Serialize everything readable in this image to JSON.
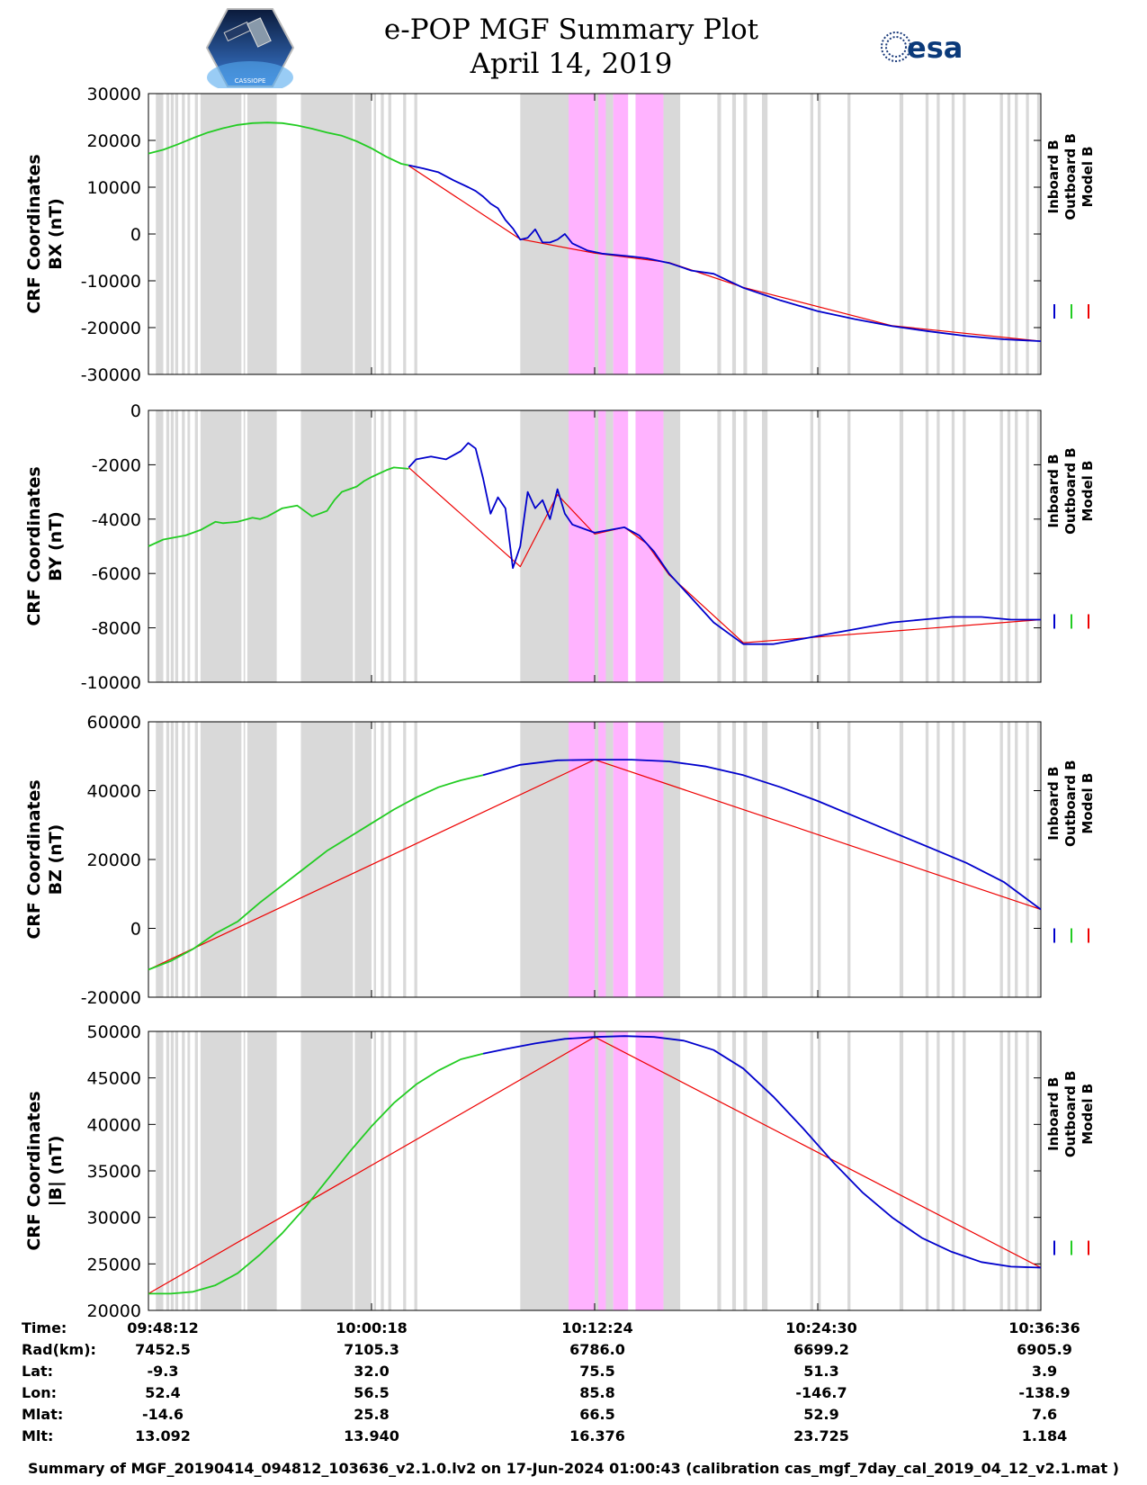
{
  "header": {
    "title": "e-POP MGF Summary Plot",
    "date": "April 14, 2019",
    "left_logo": "CASSIOPE satellite mission logo",
    "left_logo_caption": "CASSIOPE",
    "right_logo": "esa"
  },
  "colors": {
    "inboard": "#0000cc",
    "outboard": "#22cc22",
    "model": "#ee0000",
    "gray_band": "#d9d9d9",
    "pink_band": "#ffb3ff"
  },
  "chart_data": [
    {
      "type": "line",
      "ylabel_line1": "CRF Coordinates",
      "ylabel_line2": "BX (nT)",
      "ylim": [
        -30000,
        30000
      ],
      "yticks": [
        "30000",
        "20000",
        "10000",
        "0",
        "-10000",
        "-20000",
        "-30000"
      ],
      "yticks_values": [
        30000,
        20000,
        10000,
        0,
        -10000,
        -20000,
        -30000
      ],
      "legend": [
        "Inboard B",
        "Outboard B",
        "Model B"
      ],
      "series": [
        {
          "name": "Outboard B",
          "x": [
            0,
            4,
            8,
            12,
            16,
            20,
            24,
            28,
            32,
            36,
            40,
            44,
            48,
            52,
            56,
            60,
            64,
            68,
            70
          ],
          "values": [
            17200,
            18000,
            19200,
            20500,
            21700,
            22600,
            23300,
            23700,
            23800,
            23700,
            23200,
            22500,
            21700,
            21000,
            19800,
            18300,
            16500,
            15000,
            14700
          ]
        },
        {
          "name": "Inboard B",
          "x": [
            70,
            74,
            78,
            82,
            86,
            88,
            90,
            92,
            94,
            96,
            98,
            100,
            102,
            104,
            106,
            108,
            110,
            112,
            114,
            118,
            122,
            126,
            130,
            134,
            140,
            146,
            152,
            160,
            170,
            180,
            190,
            200,
            210,
            220,
            230,
            240
          ],
          "values": [
            14700,
            14000,
            13200,
            11500,
            10000,
            9200,
            8000,
            6500,
            5500,
            3000,
            1200,
            -1200,
            -800,
            1000,
            -1800,
            -1800,
            -1200,
            0,
            -2000,
            -3500,
            -4200,
            -4500,
            -4800,
            -5200,
            -6200,
            -7800,
            -8500,
            -11500,
            -14200,
            -16500,
            -18200,
            -19700,
            -20800,
            -21800,
            -22500,
            -22900
          ]
        },
        {
          "name": "Model B",
          "x": [
            70,
            100,
            120,
            140,
            160,
            200,
            240
          ],
          "values": [
            14600,
            -1100,
            -4100,
            -6100,
            -11400,
            -19600,
            -22900
          ]
        }
      ]
    },
    {
      "type": "line",
      "ylabel_line1": "CRF Coordinates",
      "ylabel_line2": "BY (nT)",
      "ylim": [
        -10000,
        0
      ],
      "yticks": [
        "0",
        "-2000",
        "-4000",
        "-6000",
        "-8000",
        "-10000"
      ],
      "yticks_values": [
        0,
        -2000,
        -4000,
        -6000,
        -8000,
        -10000
      ],
      "legend": [
        "Inboard B",
        "Outboard B",
        "Model B"
      ],
      "series": [
        {
          "name": "Outboard B",
          "x": [
            0,
            4,
            10,
            14,
            18,
            20,
            24,
            28,
            30,
            32,
            36,
            40,
            44,
            48,
            50,
            52,
            54,
            56,
            58,
            60,
            64,
            66,
            70
          ],
          "values": [
            -5000,
            -4750,
            -4600,
            -4400,
            -4100,
            -4150,
            -4100,
            -3950,
            -4000,
            -3900,
            -3600,
            -3500,
            -3900,
            -3700,
            -3300,
            -3000,
            -2900,
            -2800,
            -2600,
            -2450,
            -2200,
            -2100,
            -2150
          ]
        },
        {
          "name": "Inboard B",
          "x": [
            70,
            72,
            76,
            80,
            84,
            86,
            88,
            90,
            92,
            94,
            96,
            98,
            100,
            102,
            104,
            106,
            108,
            110,
            112,
            114,
            116,
            118,
            120,
            124,
            128,
            132,
            136,
            140,
            146,
            152,
            160,
            168,
            176,
            184,
            192,
            200,
            208,
            216,
            224,
            232,
            240
          ],
          "values": [
            -2100,
            -1800,
            -1700,
            -1800,
            -1500,
            -1200,
            -1400,
            -2500,
            -3800,
            -3200,
            -3600,
            -5800,
            -5000,
            -3000,
            -3600,
            -3300,
            -4000,
            -2900,
            -3800,
            -4200,
            -4300,
            -4400,
            -4500,
            -4400,
            -4300,
            -4600,
            -5200,
            -6000,
            -6900,
            -7800,
            -8600,
            -8600,
            -8400,
            -8200,
            -8000,
            -7800,
            -7700,
            -7600,
            -7600,
            -7700,
            -7700
          ]
        },
        {
          "name": "Model B",
          "x": [
            70,
            100,
            110,
            120,
            128,
            134,
            140,
            160,
            240
          ],
          "values": [
            -2100,
            -5750,
            -3100,
            -4550,
            -4300,
            -4900,
            -6050,
            -8550,
            -7700
          ]
        }
      ]
    },
    {
      "type": "line",
      "ylabel_line1": "CRF Coordinates",
      "ylabel_line2": "BZ (nT)",
      "ylim": [
        -20000,
        60000
      ],
      "yticks": [
        "60000",
        "40000",
        "20000",
        "0",
        "-20000"
      ],
      "yticks_values": [
        60000,
        40000,
        20000,
        0,
        -20000
      ],
      "legend": [
        "Inboard B",
        "Outboard B",
        "Model B"
      ],
      "series": [
        {
          "name": "Outboard B",
          "x": [
            0,
            6,
            12,
            18,
            24,
            30,
            36,
            42,
            48,
            54,
            60,
            66,
            72,
            78,
            84,
            90
          ],
          "values": [
            -12000,
            -9500,
            -6000,
            -1500,
            2000,
            7500,
            12500,
            17500,
            22500,
            26500,
            30500,
            34500,
            38000,
            41000,
            43000,
            44500
          ]
        },
        {
          "name": "Inboard B",
          "x": [
            90,
            100,
            110,
            120,
            130,
            140,
            150,
            160,
            170,
            180,
            190,
            200,
            210,
            220,
            230,
            240
          ],
          "values": [
            44500,
            47500,
            48800,
            49000,
            49000,
            48500,
            47000,
            44500,
            41000,
            37000,
            32500,
            28000,
            23500,
            19000,
            13500,
            5500
          ]
        },
        {
          "name": "Model B",
          "x": [
            0,
            120,
            240
          ],
          "values": [
            -12000,
            49000,
            5500
          ]
        }
      ]
    },
    {
      "type": "line",
      "ylabel_line1": "CRF Coordinates",
      "ylabel_line2": "|B| (nT)",
      "ylim": [
        20000,
        50000
      ],
      "yticks": [
        "50000",
        "45000",
        "40000",
        "35000",
        "30000",
        "25000",
        "20000"
      ],
      "yticks_values": [
        50000,
        45000,
        40000,
        35000,
        30000,
        25000,
        20000
      ],
      "legend": [
        "Inboard B",
        "Outboard B",
        "Model B"
      ],
      "series": [
        {
          "name": "Outboard B",
          "x": [
            0,
            6,
            12,
            18,
            24,
            30,
            36,
            42,
            48,
            54,
            60,
            66,
            72,
            78,
            84,
            90
          ],
          "values": [
            21800,
            21800,
            22000,
            22700,
            24000,
            26000,
            28300,
            31000,
            34000,
            37000,
            39800,
            42300,
            44300,
            45800,
            47000,
            47600
          ]
        },
        {
          "name": "Inboard B",
          "x": [
            90,
            96,
            104,
            112,
            120,
            128,
            136,
            144,
            152,
            160,
            168,
            176,
            184,
            192,
            200,
            208,
            216,
            224,
            232,
            240
          ],
          "values": [
            47600,
            48100,
            48700,
            49200,
            49400,
            49500,
            49400,
            49000,
            48000,
            46000,
            43000,
            39600,
            36000,
            32700,
            30000,
            27800,
            26300,
            25200,
            24700,
            24600
          ]
        },
        {
          "name": "Model B",
          "x": [
            0,
            120,
            240
          ],
          "values": [
            21800,
            49400,
            24600
          ]
        }
      ]
    }
  ],
  "shading": {
    "gray_bands": [
      [
        2,
        4
      ],
      [
        4.8,
        5.6
      ],
      [
        6,
        6.8
      ],
      [
        7.2,
        8
      ],
      [
        9,
        9.8
      ],
      [
        10.5,
        11.2
      ],
      [
        12.5,
        13.3
      ],
      [
        14,
        25
      ],
      [
        25.6,
        26
      ],
      [
        26.6,
        34.5
      ],
      [
        41,
        55
      ],
      [
        55.5,
        60
      ],
      [
        60.6,
        61.2
      ],
      [
        62.5,
        63.3
      ],
      [
        64.5,
        65.3
      ],
      [
        68.5,
        69.3
      ],
      [
        71.5,
        72.3
      ],
      [
        100,
        116
      ],
      [
        117,
        125
      ],
      [
        140,
        143
      ],
      [
        153,
        154
      ],
      [
        157,
        158
      ],
      [
        160,
        161
      ],
      [
        165,
        166.5
      ],
      [
        178,
        178.8
      ],
      [
        180,
        180.8
      ],
      [
        188,
        188.8
      ],
      [
        202,
        203
      ],
      [
        209,
        209.8
      ],
      [
        212,
        212.8
      ],
      [
        216,
        216.8
      ],
      [
        219,
        219.8
      ],
      [
        229,
        229.8
      ],
      [
        231,
        231.8
      ],
      [
        233,
        233.8
      ],
      [
        236,
        236.8
      ],
      [
        239,
        239.8
      ]
    ],
    "pink_bands": [
      [
        113,
        120
      ],
      [
        121,
        123
      ],
      [
        125,
        129
      ],
      [
        131,
        138.5
      ]
    ],
    "gray_after_pink": [
      [
        138.5,
        143
      ]
    ]
  },
  "time_table": {
    "row_labels": [
      "Time:",
      "Rad(km):",
      "Lat:",
      "Lon:",
      "Mlat:",
      "Mlt:"
    ],
    "columns": [
      [
        "09:48:12",
        "7452.5",
        "-9.3",
        "52.4",
        "-14.6",
        "13.092"
      ],
      [
        "10:00:18",
        "7105.3",
        "32.0",
        "56.5",
        "25.8",
        "13.940"
      ],
      [
        "10:12:24",
        "6786.0",
        "75.5",
        "85.8",
        "66.5",
        "16.376"
      ],
      [
        "10:24:30",
        "6699.2",
        "51.3",
        "-146.7",
        "52.9",
        "23.725"
      ],
      [
        "10:36:36",
        "6905.9",
        "3.9",
        "-138.9",
        "7.6",
        "1.184"
      ]
    ]
  },
  "footer": "Summary of MGF_20190414_094812_103636_v2.1.0.lv2 on 17-Jun-2024 01:00:43 (calibration cas_mgf_7day_cal_2019_04_12_v2.1.mat )"
}
